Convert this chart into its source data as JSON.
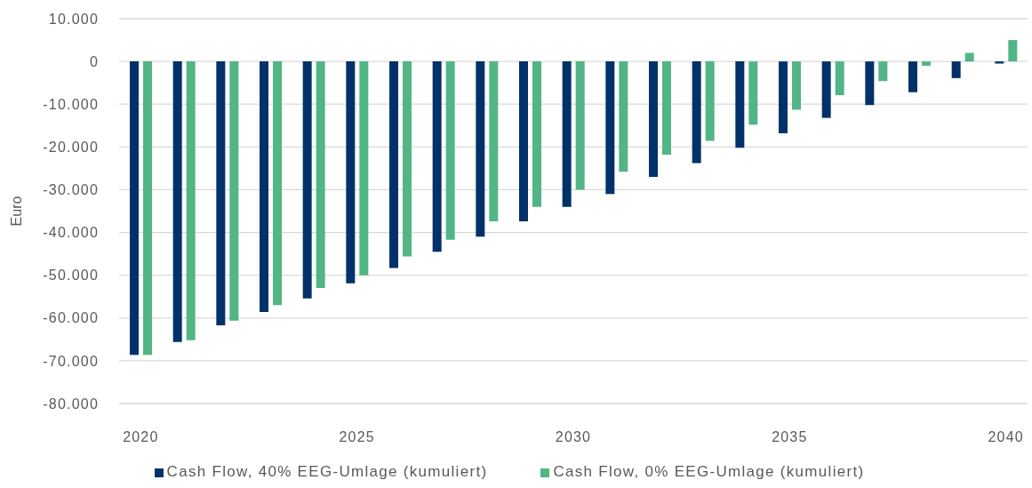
{
  "chart_data": {
    "type": "bar",
    "ylabel": "Euro",
    "categories": [
      "2020",
      null,
      null,
      null,
      null,
      "2025",
      null,
      null,
      null,
      null,
      "2030",
      null,
      null,
      null,
      null,
      "2035",
      null,
      null,
      null,
      null,
      "2040"
    ],
    "series": [
      {
        "name": "Cash Flow, 40% EEG-Umlage (kumuliert)",
        "color": "#003269",
        "values": [
          -68600,
          -65600,
          -61700,
          -58600,
          -55400,
          -51900,
          -48300,
          -44500,
          -41000,
          -37400,
          -34000,
          -31000,
          -27000,
          -23800,
          -20200,
          -16800,
          -13200,
          -10200,
          -7200,
          -3900,
          -500
        ]
      },
      {
        "name": "Cash Flow, 0% EEG-Umlage (kumuliert)",
        "color": "#52b585",
        "values": [
          -68600,
          -65200,
          -60600,
          -57000,
          -53000,
          -50000,
          -45600,
          -41700,
          -37400,
          -34000,
          -30000,
          -25800,
          -21800,
          -18600,
          -14800,
          -11300,
          -7900,
          -4600,
          -1000,
          2000,
          5000
        ]
      }
    ],
    "ylim": [
      -80000,
      10000
    ],
    "yticks": [
      {
        "value": 10000,
        "label": "10.000"
      },
      {
        "value": 0,
        "label": "0"
      },
      {
        "value": -10000,
        "label": "-10.000"
      },
      {
        "value": -20000,
        "label": "-20.000"
      },
      {
        "value": -30000,
        "label": "-30.000"
      },
      {
        "value": -40000,
        "label": "-40.000"
      },
      {
        "value": -50000,
        "label": "-50.000"
      },
      {
        "value": -60000,
        "label": "-60.000"
      },
      {
        "value": -70000,
        "label": "-70.000"
      },
      {
        "value": -80000,
        "label": "-80.000"
      }
    ],
    "grid": "y",
    "legend": "bottom"
  }
}
